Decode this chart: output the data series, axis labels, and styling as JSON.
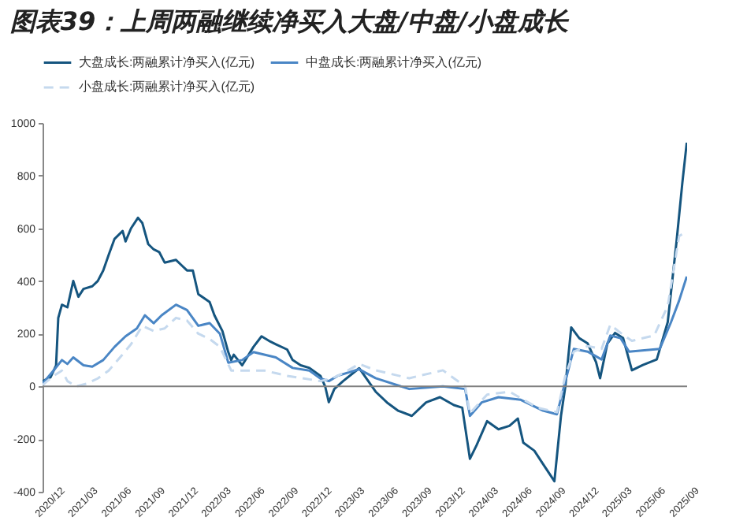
{
  "chart_data": {
    "type": "line",
    "title": "图表39：上周两融继续净买入大盘/中盘/小盘成长",
    "xlim": [
      "2020-11-22",
      "2025-09-20"
    ],
    "ylim": [
      -400,
      1000
    ],
    "yticks": [
      -400,
      -200,
      0,
      200,
      400,
      600,
      800,
      1000
    ],
    "xticks": [
      {
        "value": "2020-12",
        "label": "2020/12"
      },
      {
        "value": "2021-03",
        "label": "2021/03"
      },
      {
        "value": "2021-06",
        "label": "2021/06"
      },
      {
        "value": "2021-09",
        "label": "2021/09"
      },
      {
        "value": "2021-12",
        "label": "2021/12"
      },
      {
        "value": "2022-03",
        "label": "2022/03"
      },
      {
        "value": "2022-06",
        "label": "2022/06"
      },
      {
        "value": "2022-09",
        "label": "2022/09"
      },
      {
        "value": "2022-12",
        "label": "2022/12"
      },
      {
        "value": "2023-03",
        "label": "2023/03"
      },
      {
        "value": "2023-06",
        "label": "2023/06"
      },
      {
        "value": "2023-09",
        "label": "2023/09"
      },
      {
        "value": "2023-12",
        "label": "2023/12"
      },
      {
        "value": "2024-03",
        "label": "2024/03"
      },
      {
        "value": "2024-06",
        "label": "2024/06"
      },
      {
        "value": "2024-09",
        "label": "2024/09"
      },
      {
        "value": "2024-12",
        "label": "2024/12"
      },
      {
        "value": "2025-03",
        "label": "2025/03"
      },
      {
        "value": "2025-06",
        "label": "2025/06"
      },
      {
        "value": "2025-09",
        "label": "2025/09"
      }
    ],
    "grid": false,
    "legend": "top",
    "ref_lines": [
      {
        "axis": "y",
        "value": 0,
        "color": "#808080"
      }
    ],
    "series": [
      {
        "name": "大盘成长:两融累计净买入(亿元)",
        "color": "#15557f",
        "line_style": "solid",
        "x": [
          "2020-11-22",
          "2020-12-14",
          "2020-12-29",
          "2021-01-04",
          "2021-01-14",
          "2021-01-29",
          "2021-02-14",
          "2021-02-28",
          "2021-03-14",
          "2021-04-07",
          "2021-04-22",
          "2021-05-07",
          "2021-05-22",
          "2021-06-07",
          "2021-06-29",
          "2021-07-07",
          "2021-07-22",
          "2021-08-10",
          "2021-08-22",
          "2021-09-07",
          "2021-09-22",
          "2021-10-07",
          "2021-10-22",
          "2021-11-22",
          "2021-12-07",
          "2021-12-22",
          "2022-01-07",
          "2022-01-22",
          "2022-02-22",
          "2022-03-07",
          "2022-03-29",
          "2022-04-14",
          "2022-04-22",
          "2022-04-29",
          "2022-05-22",
          "2022-06-22",
          "2022-07-14",
          "2022-08-07",
          "2022-08-22",
          "2022-09-22",
          "2022-10-07",
          "2022-10-29",
          "2022-11-22",
          "2022-12-22",
          "2023-01-04",
          "2023-01-14",
          "2023-01-29",
          "2023-02-22",
          "2023-04-07",
          "2023-05-22",
          "2023-06-22",
          "2023-07-22",
          "2023-08-29",
          "2023-10-07",
          "2023-11-14",
          "2023-12-22",
          "2024-01-14",
          "2024-02-04",
          "2024-02-22",
          "2024-03-22",
          "2024-04-22",
          "2024-05-22",
          "2024-06-14",
          "2024-06-29",
          "2024-07-29",
          "2024-08-22",
          "2024-09-22",
          "2024-10-10",
          "2024-10-22",
          "2024-11-07",
          "2024-11-29",
          "2024-12-22",
          "2025-01-14",
          "2025-01-25",
          "2025-02-14",
          "2025-03-07",
          "2025-03-29",
          "2025-04-22",
          "2025-05-22",
          "2025-06-29",
          "2025-07-29",
          "2025-08-22",
          "2025-09-07",
          "2025-09-19"
        ],
        "values": [
          20,
          35,
          80,
          260,
          310,
          300,
          400,
          340,
          370,
          380,
          400,
          440,
          500,
          560,
          590,
          550,
          600,
          640,
          620,
          540,
          520,
          510,
          470,
          480,
          460,
          440,
          440,
          350,
          320,
          270,
          210,
          130,
          100,
          120,
          80,
          150,
          190,
          170,
          160,
          140,
          100,
          80,
          70,
          40,
          0,
          -60,
          -10,
          20,
          69,
          -20,
          -61,
          -92,
          -112,
          -61,
          -41,
          -71,
          -81,
          -275,
          -224,
          -132,
          -163,
          -150,
          -122,
          -214,
          -244,
          -295,
          -360,
          -112,
          0,
          224,
          183,
          163,
          92,
          31,
          163,
          203,
          183,
          61,
          81,
          102,
          244,
          549,
          773,
          925
        ]
      },
      {
        "name": "中盘成长:两融累计净买入(亿元)",
        "color": "#4a86c5",
        "line_style": "solid",
        "x": [
          "2020-11-22",
          "2020-12-22",
          "2021-01-14",
          "2021-01-29",
          "2021-02-14",
          "2021-03-14",
          "2021-04-07",
          "2021-05-07",
          "2021-06-07",
          "2021-07-07",
          "2021-08-07",
          "2021-08-29",
          "2021-09-22",
          "2021-10-14",
          "2021-11-22",
          "2021-12-22",
          "2022-01-22",
          "2022-02-22",
          "2022-03-22",
          "2022-04-14",
          "2022-05-22",
          "2022-06-22",
          "2022-08-22",
          "2022-10-07",
          "2022-11-22",
          "2022-12-22",
          "2023-01-14",
          "2023-02-07",
          "2023-04-07",
          "2023-05-22",
          "2023-08-22",
          "2023-11-22",
          "2024-01-22",
          "2024-02-04",
          "2024-03-07",
          "2024-04-22",
          "2024-06-22",
          "2024-08-22",
          "2024-09-29",
          "2024-10-22",
          "2024-11-14",
          "2024-12-22",
          "2025-01-29",
          "2025-02-22",
          "2025-03-22",
          "2025-04-14",
          "2025-07-07",
          "2025-08-07",
          "2025-08-29",
          "2025-09-19"
        ],
        "values": [
          10,
          60,
          100,
          85,
          110,
          80,
          75,
          100,
          150,
          190,
          220,
          270,
          240,
          270,
          310,
          290,
          230,
          240,
          200,
          90,
          100,
          130,
          110,
          70,
          60,
          30,
          20,
          40,
          65,
          31,
          -10,
          0,
          -10,
          -112,
          -61,
          -41,
          -51,
          -92,
          -106,
          20,
          142,
          132,
          102,
          193,
          183,
          132,
          142,
          244,
          325,
          417
        ]
      },
      {
        "name": "小盘成长:两融累计净买入(亿元)",
        "color": "#c5d9ee",
        "line_style": "dashed",
        "x": [
          "2020-11-22",
          "2020-12-22",
          "2021-01-14",
          "2021-01-29",
          "2021-02-22",
          "2021-03-22",
          "2021-04-22",
          "2021-05-22",
          "2021-06-22",
          "2021-07-22",
          "2021-08-22",
          "2021-09-22",
          "2021-10-22",
          "2021-11-22",
          "2021-12-22",
          "2022-01-22",
          "2022-02-22",
          "2022-03-22",
          "2022-04-22",
          "2022-06-07",
          "2022-07-22",
          "2022-08-22",
          "2022-09-22",
          "2022-11-07",
          "2022-12-22",
          "2023-01-22",
          "2023-02-22",
          "2023-04-07",
          "2023-05-22",
          "2023-08-22",
          "2023-11-22",
          "2024-01-22",
          "2024-02-04",
          "2024-03-22",
          "2024-05-22",
          "2024-08-07",
          "2024-09-29",
          "2024-10-22",
          "2024-11-14",
          "2024-12-22",
          "2025-01-29",
          "2025-02-22",
          "2025-03-22",
          "2025-04-22",
          "2025-06-22",
          "2025-07-29",
          "2025-08-29",
          "2025-09-19"
        ],
        "values": [
          5,
          40,
          60,
          20,
          0,
          10,
          30,
          60,
          110,
          160,
          230,
          210,
          220,
          260,
          250,
          200,
          180,
          150,
          60,
          60,
          60,
          50,
          40,
          30,
          20,
          30,
          50,
          85,
          61,
          31,
          61,
          0,
          -102,
          -31,
          -20,
          -81,
          -98,
          41,
          132,
          153,
          142,
          234,
          203,
          173,
          193,
          305,
          570,
          590
        ]
      }
    ]
  }
}
